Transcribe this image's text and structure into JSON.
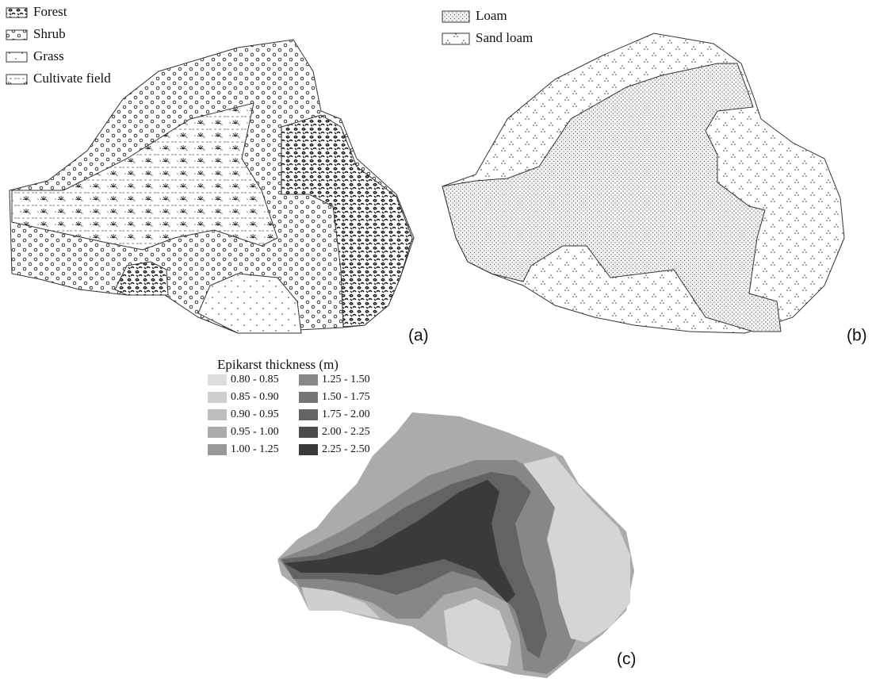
{
  "panel_a": {
    "label": "(a)",
    "legend": [
      "Forest",
      "Shrub",
      "Grass",
      "Cultivate field"
    ]
  },
  "panel_b": {
    "label": "(b)",
    "legend": [
      "Loam",
      "Sand loam"
    ]
  },
  "panel_c": {
    "label": "(c)",
    "legend_title": "Epikarst thickness (m)",
    "legend": [
      {
        "label": "0.80 - 0.85",
        "color": "#dcdcdc"
      },
      {
        "label": "0.85 - 0.90",
        "color": "#cfcfcf"
      },
      {
        "label": "0.90 - 0.95",
        "color": "#bdbdbd"
      },
      {
        "label": "0.95 - 1.00",
        "color": "#ababab"
      },
      {
        "label": "1.00 - 1.25",
        "color": "#999999"
      },
      {
        "label": "1.25 - 1.50",
        "color": "#878787"
      },
      {
        "label": "1.50 - 1.75",
        "color": "#757575"
      },
      {
        "label": "1.75 - 2.00",
        "color": "#636363"
      },
      {
        "label": "2.00 - 2.25",
        "color": "#4d4d4d"
      },
      {
        "label": "2.25 - 2.50",
        "color": "#3a3a3a"
      }
    ]
  }
}
